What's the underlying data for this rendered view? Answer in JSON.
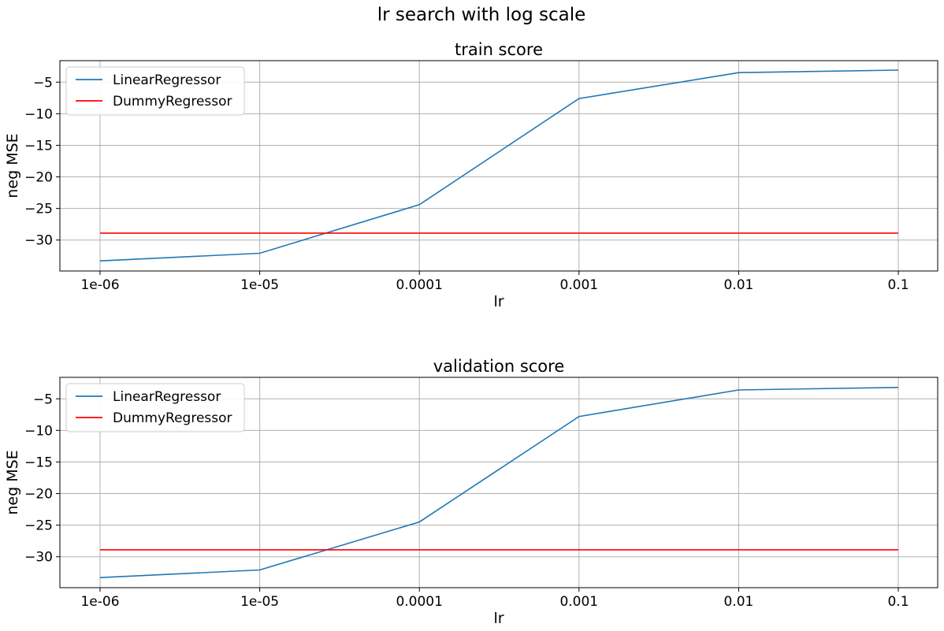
{
  "figure_title": "lr search with log scale",
  "colors": {
    "linear": "#1f77b4",
    "dummy": "#ff0000",
    "grid": "#b0b0b0",
    "axes": "#000000"
  },
  "chart_data": [
    {
      "type": "line",
      "title": "train score",
      "xlabel": "lr",
      "ylabel": "neg MSE",
      "xscale": "log",
      "x": [
        1e-06,
        1e-05,
        0.0001,
        0.001,
        0.01,
        0.1
      ],
      "x_tick_labels": [
        "1e-06",
        "1e-05",
        "0.0001",
        "0.001",
        "0.01",
        "0.1"
      ],
      "y_ticks": [
        -5,
        -10,
        -15,
        -20,
        -25,
        -30
      ],
      "y_tick_labels": [
        "−5",
        "−10",
        "−15",
        "−20",
        "−25",
        "−30"
      ],
      "ylim": [
        -34.9,
        -1.6
      ],
      "grid": true,
      "legend_position": "upper left",
      "series": [
        {
          "name": "LinearRegressor",
          "color_key": "linear",
          "values": [
            -33.3,
            -32.1,
            -24.4,
            -7.6,
            -3.5,
            -3.1
          ]
        },
        {
          "name": "DummyRegressor",
          "color_key": "dummy",
          "values": [
            -28.9,
            -28.9,
            -28.9,
            -28.9,
            -28.9,
            -28.9
          ]
        }
      ]
    },
    {
      "type": "line",
      "title": "validation score",
      "xlabel": "lr",
      "ylabel": "neg MSE",
      "xscale": "log",
      "x": [
        1e-06,
        1e-05,
        0.0001,
        0.001,
        0.01,
        0.1
      ],
      "x_tick_labels": [
        "1e-06",
        "1e-05",
        "0.0001",
        "0.001",
        "0.01",
        "0.1"
      ],
      "y_ticks": [
        -5,
        -10,
        -15,
        -20,
        -25,
        -30
      ],
      "y_tick_labels": [
        "−5",
        "−10",
        "−15",
        "−20",
        "−25",
        "−30"
      ],
      "ylim": [
        -34.9,
        -1.6
      ],
      "grid": true,
      "legend_position": "upper left",
      "series": [
        {
          "name": "LinearRegressor",
          "color_key": "linear",
          "values": [
            -33.3,
            -32.1,
            -24.5,
            -7.8,
            -3.6,
            -3.2
          ]
        },
        {
          "name": "DummyRegressor",
          "color_key": "dummy",
          "values": [
            -28.9,
            -28.9,
            -28.9,
            -28.9,
            -28.9,
            -28.9
          ]
        }
      ]
    }
  ]
}
